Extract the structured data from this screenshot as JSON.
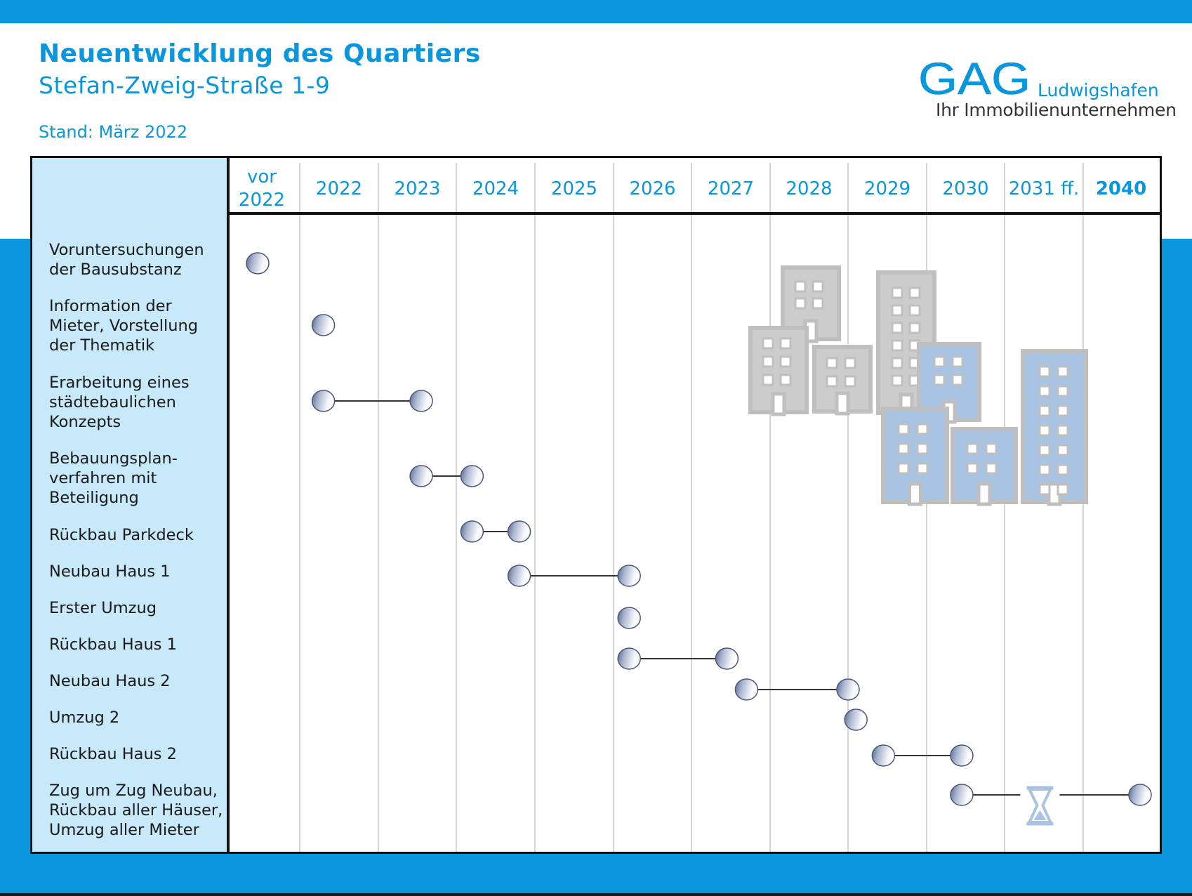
{
  "header": {
    "title": "Neuentwicklung des Quartiers",
    "subtitle": "Stefan-Zweig-Straße 1-9",
    "stand": "Stand: März 2022"
  },
  "logo": {
    "mark": "GAG",
    "city": "Ludwigshafen",
    "tagline": "Ihr Immobilienunternehmen"
  },
  "colors": {
    "brand_blue": "#0a96dc",
    "label_column": "#c8e9f9",
    "building_gray": "#cccccc",
    "building_blue": "#a9c3e3",
    "milestone": "#aab5cf"
  },
  "icons": {
    "duration_marker": "hourglass-icon",
    "illustration": "buildings-illustration"
  },
  "chart_data": {
    "type": "gantt",
    "title": "Neuentwicklung des Quartiers",
    "subtitle": "Stefan-Zweig-Straße 1-9",
    "x_categories": [
      "vor 2022",
      "2022",
      "2023",
      "2024",
      "2025",
      "2026",
      "2027",
      "2028",
      "2029",
      "2030",
      "2031 ff.",
      "2040"
    ],
    "x_bold": [
      "2040"
    ],
    "tasks": [
      {
        "label": "Voruntersuchungen der Bausubstanz",
        "start": 0.4,
        "end": null
      },
      {
        "label": "Information der Mieter, Vorstellung der Thematik",
        "start": 1.3,
        "end": null
      },
      {
        "label": "Erarbeitung eines städtebaulichen Konzepts",
        "start": 1.3,
        "end": 2.55
      },
      {
        "label": "Bebauungsplan-verfahren mit Beteiligung",
        "start": 2.55,
        "end": 3.2
      },
      {
        "label": "Rückbau Parkdeck",
        "start": 3.2,
        "end": 3.8
      },
      {
        "label": "Neubau Haus 1",
        "start": 3.8,
        "end": 5.2
      },
      {
        "label": "Erster Umzug",
        "start": 5.2,
        "end": null
      },
      {
        "label": "Rückbau Haus 1",
        "start": 5.2,
        "end": 6.45
      },
      {
        "label": "Neubau Haus 2",
        "start": 6.7,
        "end": 8.0
      },
      {
        "label": "Umzug 2",
        "start": 8.1,
        "end": null
      },
      {
        "label": "Rückbau Haus 2",
        "start": 8.45,
        "end": 9.45
      },
      {
        "label": "Zug um Zug Neubau, Rückbau aller Häuser, Umzug aller Mieter",
        "start": 9.45,
        "end": 11.75,
        "gap": true
      }
    ]
  }
}
